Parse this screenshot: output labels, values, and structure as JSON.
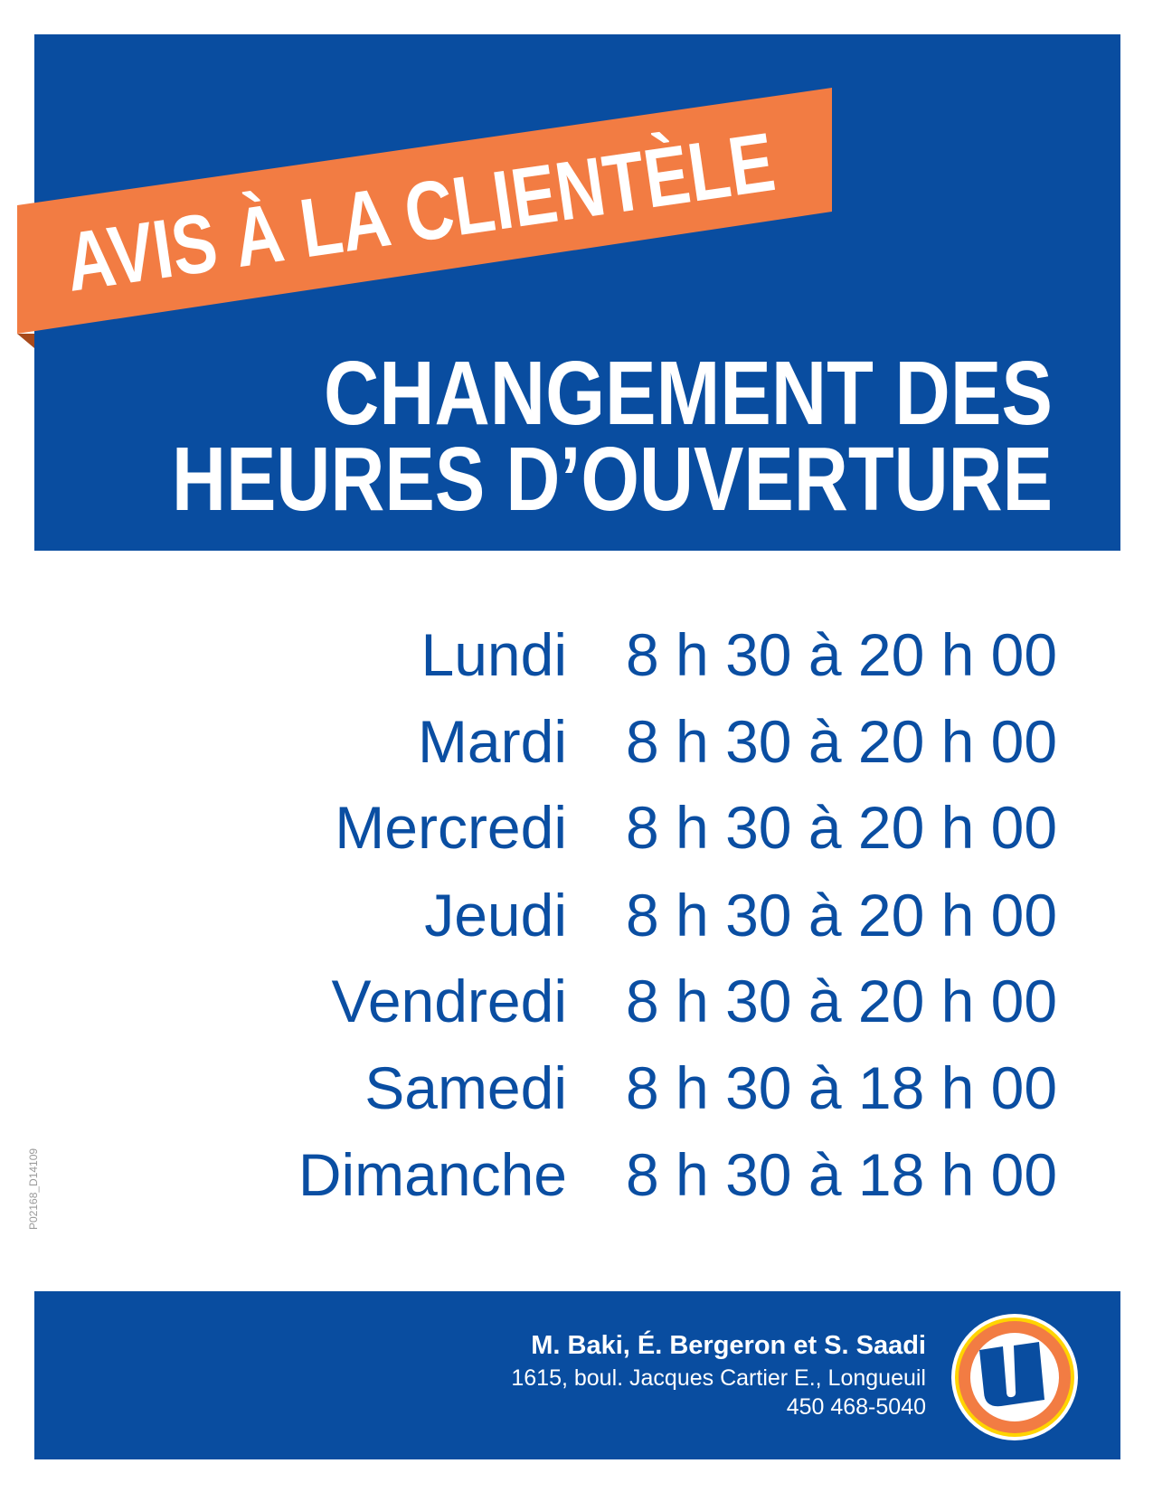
{
  "banner": {
    "text": "AVIS À LA CLIENTÈLE"
  },
  "title": {
    "line1": "CHANGEMENT DES",
    "line2": "HEURES D’OUVERTURE"
  },
  "schedule": [
    {
      "day": "Lundi",
      "hours": "8 h 30 à 20 h 00"
    },
    {
      "day": "Mardi",
      "hours": "8 h 30 à 20 h 00"
    },
    {
      "day": "Mercredi",
      "hours": "8 h 30 à 20 h 00"
    },
    {
      "day": "Jeudi",
      "hours": "8 h 30 à 20 h 00"
    },
    {
      "day": "Vendredi",
      "hours": "8 h 30 à 20 h 00"
    },
    {
      "day": "Samedi",
      "hours": "8 h 30 à 18 h 00"
    },
    {
      "day": "Dimanche",
      "hours": "8 h 30 à 18 h 00"
    }
  ],
  "footer": {
    "owners": "M. Baki, É. Bergeron et S. Saadi",
    "address": "1615, boul. Jacques Cartier E., Longueuil",
    "phone": "450 468-5040",
    "logo_letter": "U"
  },
  "print_code": "P02168_D14109",
  "colors": {
    "brand_blue": "#094da0",
    "banner_orange": "#f27c43",
    "logo_yellow": "#ffd400"
  }
}
